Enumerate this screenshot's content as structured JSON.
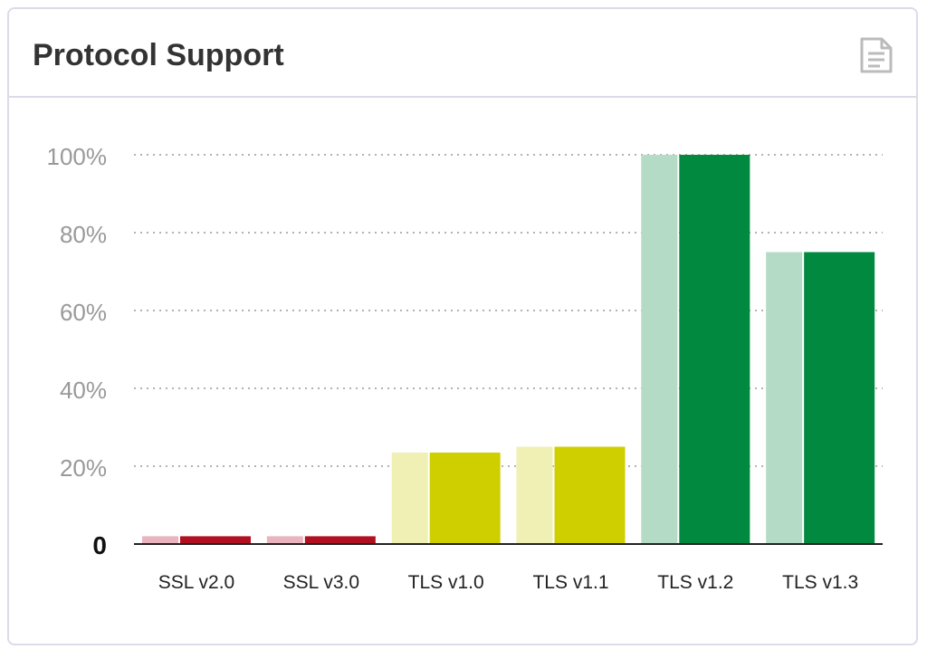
{
  "card": {
    "title": "Protocol Support",
    "icon": "document-icon"
  },
  "chart_data": {
    "type": "bar",
    "categories": [
      "SSL v2.0",
      "SSL v3.0",
      "TLS v1.0",
      "TLS v1.1",
      "TLS v1.2",
      "TLS v1.3"
    ],
    "series": [
      {
        "values": [
          2,
          2,
          23.5,
          25,
          100,
          75
        ]
      },
      {
        "values": [
          2,
          2,
          23.5,
          25,
          100,
          75
        ]
      }
    ],
    "colors": {
      "light": [
        "#eab4be",
        "#eab4be",
        "#f0efb4",
        "#f0efb4",
        "#b3dbc6",
        "#b3dbc6"
      ],
      "dark": [
        "#b01020",
        "#b01020",
        "#cfcf00",
        "#cfcf00",
        "#00893f",
        "#00893f"
      ]
    },
    "yticks": [
      {
        "value": 0,
        "label": "0"
      },
      {
        "value": 20,
        "label": "20%"
      },
      {
        "value": 40,
        "label": "40%"
      },
      {
        "value": 60,
        "label": "60%"
      },
      {
        "value": 80,
        "label": "80%"
      },
      {
        "value": 100,
        "label": "100%"
      }
    ],
    "ylim": [
      0,
      100
    ],
    "grid": true,
    "legend": "none"
  }
}
